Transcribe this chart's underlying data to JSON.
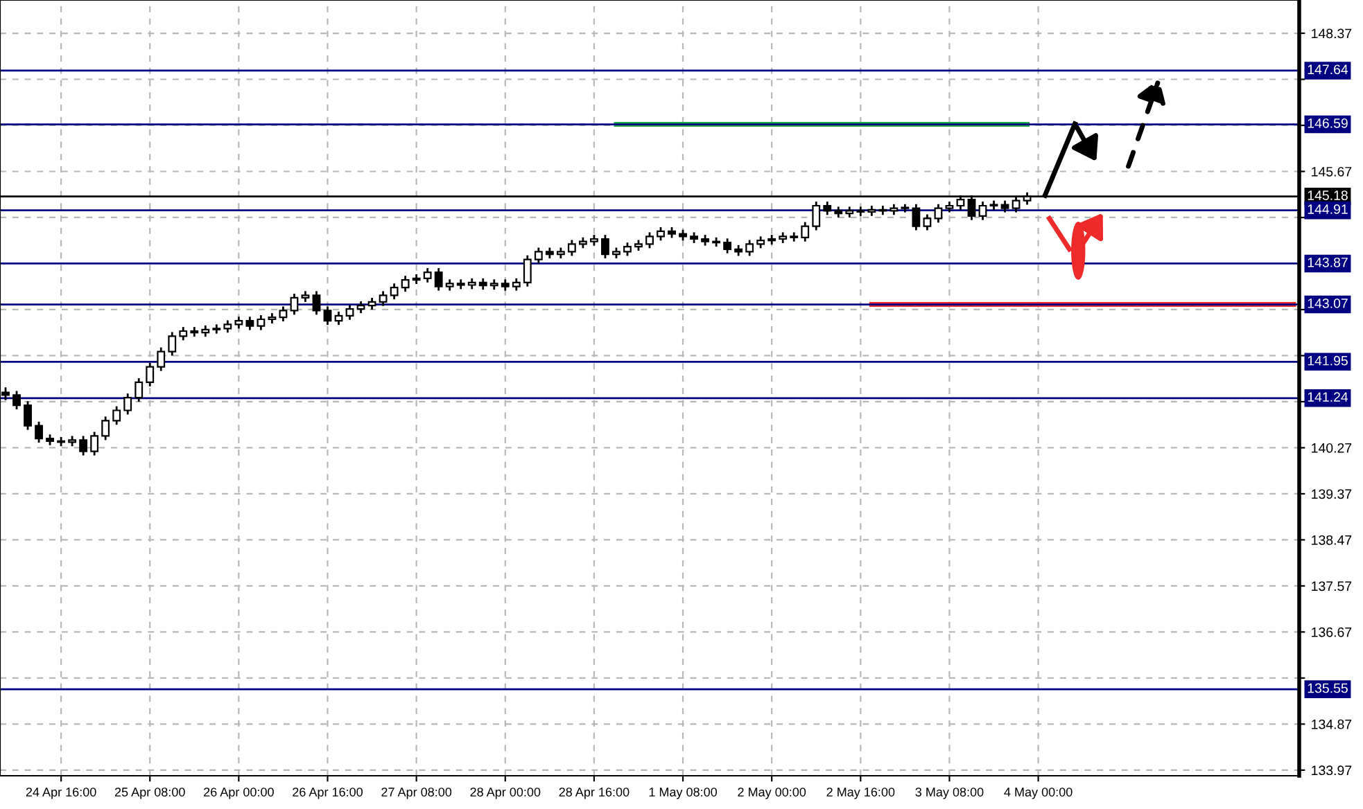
{
  "chart_data": {
    "type": "candlestick",
    "categories": [
      null,
      null,
      null,
      null,
      null,
      "24 Apr 16:00",
      null,
      null,
      null,
      null,
      null,
      null,
      null,
      "25 Apr 08:00",
      null,
      null,
      null,
      null,
      null,
      null,
      null,
      "26 Apr 00:00",
      null,
      null,
      null,
      null,
      null,
      null,
      null,
      "26 Apr 16:00",
      null,
      null,
      null,
      null,
      null,
      null,
      null,
      "27 Apr 08:00",
      null,
      null,
      null,
      null,
      null,
      null,
      null,
      "28 Apr 00:00",
      null,
      null,
      null,
      null,
      null,
      null,
      null,
      "28 Apr 16:00",
      null,
      null,
      null,
      null,
      null,
      null,
      null,
      "1 May 08:00",
      null,
      null,
      null,
      null,
      null,
      null,
      null,
      "2 May 00:00",
      null,
      null,
      null,
      null,
      null,
      null,
      null,
      "2 May 16:00",
      null,
      null,
      null,
      null,
      null,
      null,
      null,
      "3 May 08:00",
      null,
      null,
      null,
      null,
      null,
      null,
      null,
      "4 May 00:00",
      null,
      null,
      null,
      null,
      null,
      null,
      null,
      null,
      null,
      null,
      null,
      null,
      null,
      null,
      null,
      null,
      null,
      null,
      null,
      null,
      null,
      null,
      null
    ],
    "ohlc": [
      [
        141.35,
        141.45,
        141.2,
        141.3
      ],
      [
        141.3,
        141.38,
        141.02,
        141.1
      ],
      [
        141.1,
        141.18,
        140.62,
        140.7
      ],
      [
        140.7,
        140.78,
        140.37,
        140.45
      ],
      [
        140.45,
        140.53,
        140.32,
        140.4
      ],
      [
        140.4,
        140.48,
        140.3,
        140.38
      ],
      [
        140.38,
        140.5,
        140.3,
        140.42
      ],
      [
        140.42,
        140.5,
        140.12,
        140.2
      ],
      [
        140.2,
        140.58,
        140.12,
        140.5
      ],
      [
        140.5,
        140.88,
        140.42,
        140.8
      ],
      [
        140.8,
        141.08,
        140.72,
        141.0
      ],
      [
        141.0,
        141.33,
        140.92,
        141.25
      ],
      [
        141.25,
        141.63,
        141.17,
        141.55
      ],
      [
        141.55,
        141.93,
        141.47,
        141.85
      ],
      [
        141.85,
        142.23,
        141.77,
        142.15
      ],
      [
        142.15,
        142.53,
        142.07,
        142.45
      ],
      [
        142.45,
        142.63,
        142.37,
        142.55
      ],
      [
        142.55,
        142.63,
        142.44,
        142.52
      ],
      [
        142.52,
        142.66,
        142.44,
        142.58
      ],
      [
        142.58,
        142.68,
        142.5,
        142.6
      ],
      [
        142.6,
        142.76,
        142.52,
        142.68
      ],
      [
        142.68,
        142.83,
        142.6,
        142.75
      ],
      [
        142.75,
        142.83,
        142.57,
        142.65
      ],
      [
        142.65,
        142.86,
        142.57,
        142.78
      ],
      [
        142.78,
        142.9,
        142.7,
        142.82
      ],
      [
        142.82,
        143.03,
        142.74,
        142.95
      ],
      [
        142.95,
        143.28,
        142.87,
        143.2
      ],
      [
        143.2,
        143.33,
        143.12,
        143.25
      ],
      [
        143.25,
        143.33,
        142.87,
        142.95
      ],
      [
        142.95,
        143.03,
        142.67,
        142.75
      ],
      [
        142.75,
        142.93,
        142.67,
        142.85
      ],
      [
        142.85,
        143.06,
        142.77,
        142.98
      ],
      [
        142.98,
        143.13,
        142.9,
        143.05
      ],
      [
        143.05,
        143.2,
        142.97,
        143.12
      ],
      [
        143.12,
        143.33,
        143.04,
        143.25
      ],
      [
        143.25,
        143.48,
        143.17,
        143.4
      ],
      [
        143.4,
        143.63,
        143.32,
        143.55
      ],
      [
        143.55,
        143.66,
        143.47,
        143.58
      ],
      [
        143.58,
        143.78,
        143.5,
        143.7
      ],
      [
        143.7,
        143.78,
        143.34,
        143.42
      ],
      [
        143.42,
        143.56,
        143.34,
        143.48
      ],
      [
        143.48,
        143.56,
        143.37,
        143.45
      ],
      [
        143.45,
        143.58,
        143.37,
        143.5
      ],
      [
        143.5,
        143.58,
        143.36,
        143.44
      ],
      [
        143.44,
        143.56,
        143.36,
        143.48
      ],
      [
        143.48,
        143.56,
        143.34,
        143.42
      ],
      [
        143.42,
        143.58,
        143.34,
        143.5
      ],
      [
        143.5,
        144.03,
        143.42,
        143.95
      ],
      [
        143.95,
        144.18,
        143.87,
        144.1
      ],
      [
        144.1,
        144.18,
        143.97,
        144.05
      ],
      [
        144.05,
        144.18,
        143.97,
        144.1
      ],
      [
        144.1,
        144.33,
        144.02,
        144.25
      ],
      [
        144.25,
        144.38,
        144.17,
        144.3
      ],
      [
        144.3,
        144.43,
        144.22,
        144.35
      ],
      [
        144.35,
        144.43,
        143.97,
        144.05
      ],
      [
        144.05,
        144.18,
        143.97,
        144.1
      ],
      [
        144.1,
        144.28,
        144.02,
        144.2
      ],
      [
        144.2,
        144.33,
        144.12,
        144.25
      ],
      [
        144.25,
        144.48,
        144.17,
        144.4
      ],
      [
        144.4,
        144.58,
        144.32,
        144.5
      ],
      [
        144.5,
        144.58,
        144.37,
        144.45
      ],
      [
        144.45,
        144.53,
        144.32,
        144.4
      ],
      [
        144.4,
        144.48,
        144.27,
        144.35
      ],
      [
        144.35,
        144.43,
        144.22,
        144.3
      ],
      [
        144.3,
        144.38,
        144.2,
        144.28
      ],
      [
        144.28,
        144.36,
        144.07,
        144.15
      ],
      [
        144.15,
        144.23,
        144.02,
        144.1
      ],
      [
        144.1,
        144.33,
        144.02,
        144.25
      ],
      [
        144.25,
        144.4,
        144.17,
        144.32
      ],
      [
        144.32,
        144.43,
        144.24,
        144.35
      ],
      [
        144.35,
        144.48,
        144.27,
        144.4
      ],
      [
        144.4,
        144.48,
        144.3,
        144.38
      ],
      [
        144.38,
        144.68,
        144.3,
        144.6
      ],
      [
        144.6,
        145.08,
        144.52,
        145.0
      ],
      [
        145.0,
        145.08,
        144.82,
        144.9
      ],
      [
        144.9,
        144.98,
        144.77,
        144.85
      ],
      [
        144.85,
        144.98,
        144.77,
        144.9
      ],
      [
        144.9,
        144.98,
        144.8,
        144.88
      ],
      [
        144.88,
        145.0,
        144.8,
        144.92
      ],
      [
        144.92,
        145.0,
        144.82,
        144.9
      ],
      [
        144.9,
        145.03,
        144.82,
        144.95
      ],
      [
        144.95,
        145.03,
        144.87,
        144.95
      ],
      [
        144.95,
        145.03,
        144.52,
        144.6
      ],
      [
        144.6,
        144.83,
        144.52,
        144.75
      ],
      [
        144.75,
        145.03,
        144.67,
        144.95
      ],
      [
        144.95,
        145.08,
        144.87,
        145.0
      ],
      [
        145.0,
        145.2,
        144.92,
        145.12
      ],
      [
        145.12,
        145.2,
        144.72,
        144.8
      ],
      [
        144.8,
        145.08,
        144.72,
        145.0
      ],
      [
        145.0,
        145.1,
        144.92,
        145.02
      ],
      [
        145.02,
        145.1,
        144.87,
        144.95
      ],
      [
        144.95,
        145.18,
        144.87,
        145.1
      ],
      [
        145.1,
        145.26,
        145.02,
        145.18
      ],
      null,
      null,
      null,
      null,
      null,
      null,
      null,
      null,
      null,
      null,
      null,
      null,
      null,
      null,
      null,
      null,
      null,
      null,
      null,
      null,
      null,
      null,
      null,
      null
    ],
    "series": [
      {
        "type": "line",
        "color": "#1fae4b",
        "values": [
          null,
          null,
          null,
          null,
          null,
          null,
          null,
          null,
          null,
          null,
          null,
          null,
          null,
          null,
          null,
          null,
          null,
          null,
          null,
          null,
          null,
          null,
          null,
          null,
          null,
          null,
          null,
          null,
          null,
          null,
          null,
          null,
          null,
          null,
          null,
          null,
          null,
          null,
          null,
          null,
          null,
          null,
          null,
          null,
          null,
          null,
          null,
          null,
          null,
          null,
          null,
          null,
          null,
          null,
          null,
          146.59,
          146.59,
          146.59,
          146.59,
          146.59,
          146.59,
          146.59,
          146.59,
          146.59,
          146.59,
          146.59,
          146.59,
          146.59,
          146.59,
          146.59,
          146.59,
          146.59,
          146.59,
          146.59,
          146.59,
          146.59,
          146.59,
          146.59,
          146.59,
          146.59,
          146.59,
          146.59,
          146.59,
          146.59,
          146.59,
          146.59,
          146.59,
          146.59,
          146.59,
          146.59,
          146.59,
          146.59,
          146.59,
          null,
          null,
          null,
          null,
          null,
          null,
          null,
          null,
          null,
          null,
          null,
          null,
          null,
          null,
          null,
          null,
          null,
          null,
          null,
          null,
          null,
          null,
          null,
          null
        ]
      },
      {
        "type": "line",
        "color": "#ee2a2a",
        "values": [
          null,
          null,
          null,
          null,
          null,
          null,
          null,
          null,
          null,
          null,
          null,
          null,
          null,
          null,
          null,
          null,
          null,
          null,
          null,
          null,
          null,
          null,
          null,
          null,
          null,
          null,
          null,
          null,
          null,
          null,
          null,
          null,
          null,
          null,
          null,
          null,
          null,
          null,
          null,
          null,
          null,
          null,
          null,
          null,
          null,
          null,
          null,
          null,
          null,
          null,
          null,
          null,
          null,
          null,
          null,
          null,
          null,
          null,
          null,
          null,
          null,
          null,
          null,
          null,
          null,
          null,
          null,
          null,
          null,
          null,
          null,
          null,
          null,
          null,
          null,
          null,
          null,
          null,
          143.07,
          143.07,
          143.07,
          143.07,
          143.07,
          143.07,
          143.07,
          143.07,
          143.07,
          143.07,
          143.07,
          143.07,
          143.07,
          143.07,
          143.07,
          143.07,
          143.07,
          143.07,
          143.07,
          143.07,
          143.07,
          143.07,
          143.07,
          143.07,
          143.07,
          143.07,
          143.07,
          143.07,
          143.07,
          143.07,
          143.07,
          143.07,
          143.07,
          143.07,
          143.07,
          143.07,
          143.07,
          143.07,
          143.07
        ]
      }
    ],
    "ylim": [
      133.86,
      149.02
    ],
    "yticks": [
      133.97,
      134.87,
      {
        "value": 135.77,
        "label": null
      },
      136.67,
      137.57,
      138.47,
      139.37,
      140.27,
      {
        "value": 141.17,
        "label": null
      },
      {
        "value": 142.07,
        "label": null
      },
      {
        "value": 142.97,
        "label": null
      },
      {
        "value": 144.77,
        "label": null
      },
      145.67,
      {
        "value": 146.57,
        "label": null
      },
      {
        "value": 147.47,
        "label": null
      },
      148.37
    ],
    "ref_lines": [
      {
        "axis": "y",
        "value": 147.64,
        "label": "147.64",
        "color": "#000080"
      },
      {
        "axis": "y",
        "value": 146.59,
        "label": "146.59",
        "color": "#000080"
      },
      {
        "axis": "y",
        "value": 145.18,
        "label": "145.18",
        "color": "#000000"
      },
      {
        "axis": "y",
        "value": 144.91,
        "label": "144.91",
        "color": "#000080"
      },
      {
        "axis": "y",
        "value": 143.87,
        "label": "143.87",
        "color": "#000080"
      },
      {
        "axis": "y",
        "value": 143.07,
        "label": "143.07",
        "color": "#000080"
      },
      {
        "axis": "y",
        "value": 141.95,
        "label": "141.95",
        "color": "#000080"
      },
      {
        "axis": "y",
        "value": 141.24,
        "label": "141.24",
        "color": "#000080"
      },
      {
        "axis": "y",
        "value": 135.55,
        "label": "135.55",
        "color": "#000080"
      }
    ],
    "grid": true,
    "legend": false
  }
}
